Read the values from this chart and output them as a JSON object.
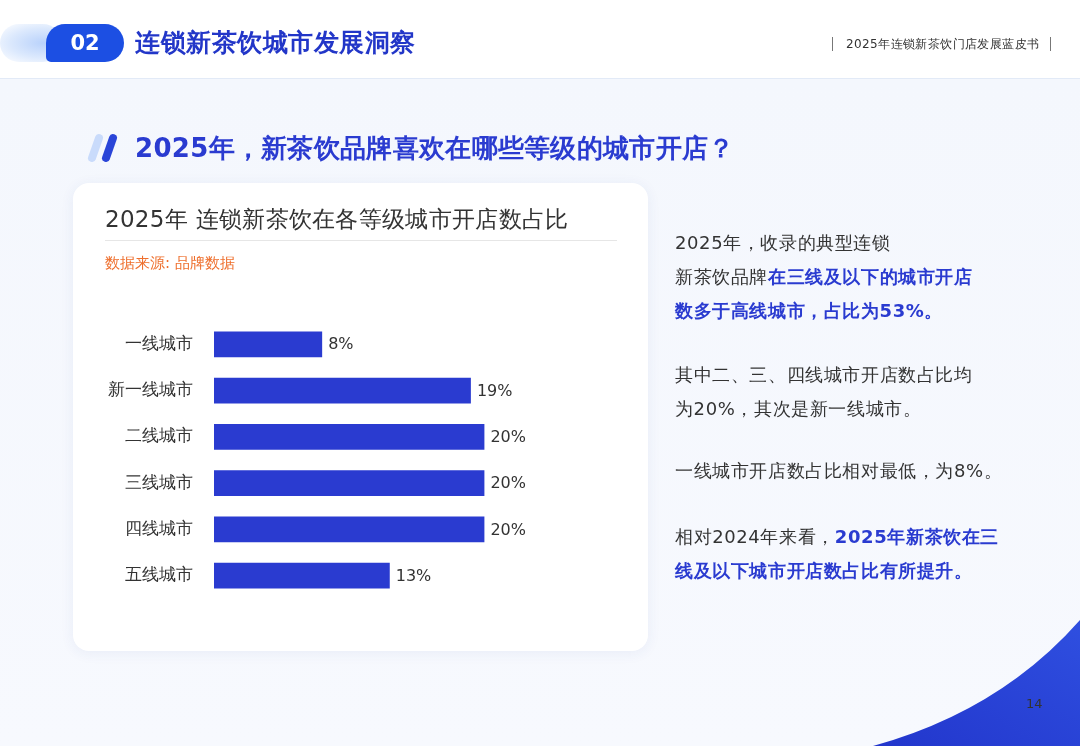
{
  "chart_data": {
    "type": "bar",
    "orientation": "horizontal",
    "title": "2025年 连锁新茶饮在各等级城市开店数占比",
    "categories": [
      "一线城市",
      "新一线城市",
      "二线城市",
      "三线城市",
      "四线城市",
      "五线城市"
    ],
    "values": [
      8,
      19,
      20,
      20,
      20,
      13
    ],
    "value_labels": [
      "8%",
      "19%",
      "20%",
      "20%",
      "20%",
      "13%"
    ],
    "color": "#2a3bd0",
    "grid": false,
    "legend": false,
    "tick_labels": "y",
    "annotations": [
      "02",
      "连锁新茶饮城市发展洞察",
      "2025年连锁新茶饮门店发展蓝皮书",
      "2025年，新茶饮品牌喜欢在哪些等级的城市开店？",
      "数据来源: 品牌数据",
      "2025年，收录的典型连锁",
      "新茶饮品牌",
      "在三线及以下的城市开店",
      "数多于高线城市，占比为53%。",
      "其中二、三、四线城市开店数占比均",
      "为20%，其次是新一线城市。",
      "一线城市开店数占比相对最低，为8%。",
      "相对2024年来看，",
      "2025年新茶饮在三",
      "线及以下城市开店数占比有所提升。",
      "14"
    ]
  }
}
